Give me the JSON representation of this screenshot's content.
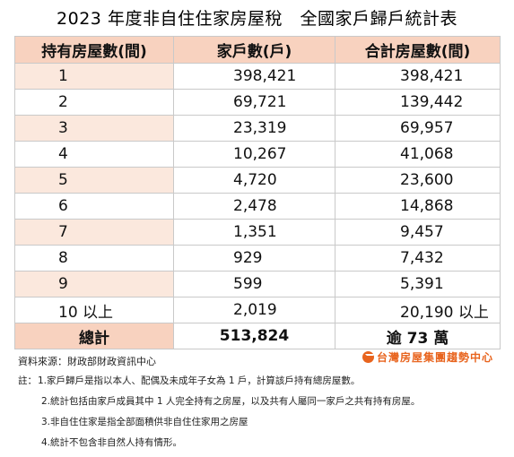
{
  "title": "2023 年度非自住住家房屋稅　全國家戶歸戶統計表",
  "headers": [
    "持有房屋數(間)",
    "家戶數(戶)",
    "合計房屋數(間)"
  ],
  "rows": [
    {
      "count": "1",
      "households": "398,421",
      "houses": "398,421"
    },
    {
      "count": "2",
      "households": "69,721",
      "houses": "139,442"
    },
    {
      "count": "3",
      "households": "23,319",
      "houses": "69,957"
    },
    {
      "count": "4",
      "households": "10,267",
      "houses": "41,068"
    },
    {
      "count": "5",
      "households": "4,720",
      "houses": "23,600"
    },
    {
      "count": "6",
      "households": "2,478",
      "houses": "14,868"
    },
    {
      "count": "7",
      "households": "1,351",
      "houses": "9,457"
    },
    {
      "count": "8",
      "households": "929",
      "houses": "7,432"
    },
    {
      "count": "9",
      "households": "599",
      "houses": "5,391"
    },
    {
      "count": "10 以上",
      "households": "2,019",
      "houses": "20,190 以上"
    }
  ],
  "total": {
    "label": "總計",
    "households": "513,824",
    "houses": "逾 73 萬"
  },
  "source": "資料來源：財政部財政資訊中心",
  "logo_text": "台灣房屋集團趨勢中心",
  "notes_label": "註：",
  "notes": [
    "1.家戶歸戶是指以本人、配偶及未成年子女為 1 戶，計算該戶持有總房屋數。",
    "2.統計包括由家戶成員其中 1 人完全持有之房屋，以及共有人屬同一家戶之共有持有房屋。",
    "3.非自住住家是指全部面積供非自住住家用之房屋",
    "4.統計不包含非自然人持有情形。"
  ]
}
